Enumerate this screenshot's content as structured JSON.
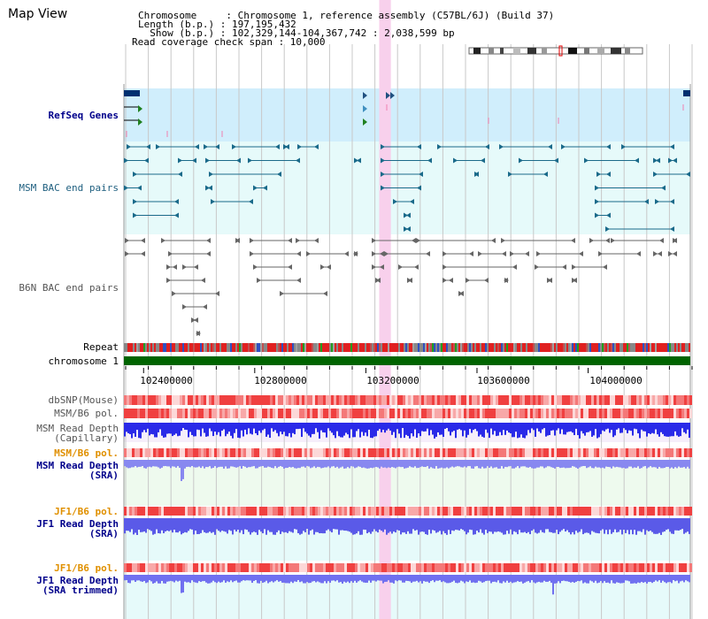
{
  "app": {
    "title": "Map View"
  },
  "header": {
    "line1": "Chromosome     : Chromosome 1, reference assembly (C57BL/6J) (Build 37)",
    "line2": "Length (b.p.) : 197,195,432",
    "line3": "  Show (b.p.) : 102,329,144-104,367,742 : 2,038,599 bp",
    "line4": "Read coverage check span : 10,000"
  },
  "tracks": {
    "refseq": "RefSeq Genes",
    "msm_bac": "MSM BAC end pairs",
    "b6n_bac": "B6N BAC end pairs",
    "repeat": "Repeat",
    "chromosome": "chromosome 1",
    "dbsnp": "dbSNP(Mouse)",
    "msm_b6_pol": "MSM/B6 pol.",
    "msm_depth_cap": "MSM Read Depth\n(Capillary)",
    "msm_b6_pol2": "MSM/B6 pol.",
    "msm_depth_sra": "MSM Read Depth\n(SRA)",
    "jf1_b6_pol": "JF1/B6 pol.",
    "jf1_depth_sra": "JF1 Read Depth\n(SRA)",
    "jf1_b6_pol2": "JF1/B6 pol.",
    "jf1_depth_trim": "JF1 Read Depth\n(SRA trimmed)"
  },
  "axis": {
    "ticks": [
      "102400000",
      "102800000",
      "103200000",
      "103600000",
      "104000000"
    ],
    "tick_values": [
      102400000,
      102800000,
      103200000,
      103600000,
      104000000
    ],
    "view_start": 102329144,
    "view_end": 104367742
  },
  "highlight": {
    "start": 103248000,
    "end": 103290000
  },
  "colors": {
    "refseq_bg": "#d0eefc",
    "msm_bac_bg": "#e6fafa",
    "depth_fill": "#4040f0",
    "pol_red": "#f06060",
    "highlight": "#f8d0ec",
    "chrom_green": "#006400"
  }
}
